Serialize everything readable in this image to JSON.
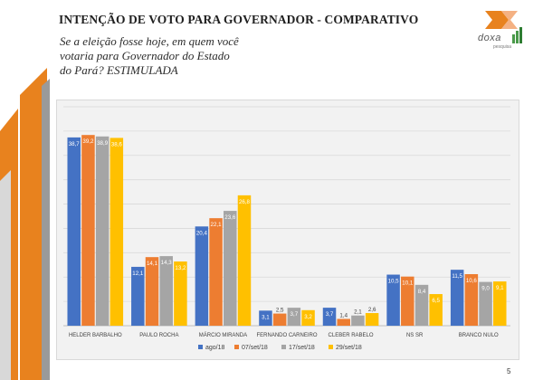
{
  "title": "INTENÇÃO DE VOTO PARA GOVERNADOR - COMPARATIVO",
  "subtitle_lines": [
    "Se a eleição fosse hoje, em quem você",
    "votaria para Governador do Estado",
    "do Pará? ESTIMULADA"
  ],
  "logo": {
    "text": "doxa",
    "sub": "pesquisa",
    "icon": "doxa-logo-icon"
  },
  "page_number": "5",
  "colors": {
    "accent_orange": "#e8821e",
    "accent_gray": "#9a9a9a",
    "series": [
      "#4472c4",
      "#ed7d31",
      "#a5a5a5",
      "#ffc000"
    ]
  },
  "chart_data": {
    "type": "bar",
    "categories": [
      "HELDER BARBALHO",
      "PAULO ROCHA",
      "MÁRCIO MIRANDA",
      "FERNANDO CARNEIRO",
      "CLEBER RABELO",
      "NS SR",
      "BRANCO NULO"
    ],
    "series": [
      {
        "name": "ago/18",
        "values": [
          38.7,
          12.1,
          20.4,
          3.1,
          3.7,
          10.5,
          11.5
        ],
        "labels": [
          "38,7",
          "12,1",
          "20,4",
          "3,1",
          "3,7",
          "10,5",
          "11,5"
        ]
      },
      {
        "name": "07/set/18",
        "values": [
          39.2,
          14.1,
          22.1,
          2.5,
          1.4,
          10.1,
          10.6
        ],
        "labels": [
          "39,2",
          "14,1",
          "22,1",
          "2,5",
          "1,4",
          "10,1",
          "10,6"
        ]
      },
      {
        "name": "17/set/18",
        "values": [
          38.9,
          14.3,
          23.6,
          3.7,
          2.1,
          8.4,
          9.0
        ],
        "labels": [
          "38,9",
          "14,3",
          "23,6",
          "3,7",
          "2,1",
          "8,4",
          "9,0"
        ]
      },
      {
        "name": "29/set/18",
        "values": [
          38.6,
          13.2,
          26.8,
          3.2,
          2.6,
          6.5,
          9.1
        ],
        "labels": [
          "38,6",
          "13,2",
          "26,8",
          "3,2",
          "2,6",
          "6,5",
          "9,1"
        ]
      }
    ],
    "ylim": [
      0,
      45
    ],
    "grid": true,
    "legend": "bottom"
  }
}
